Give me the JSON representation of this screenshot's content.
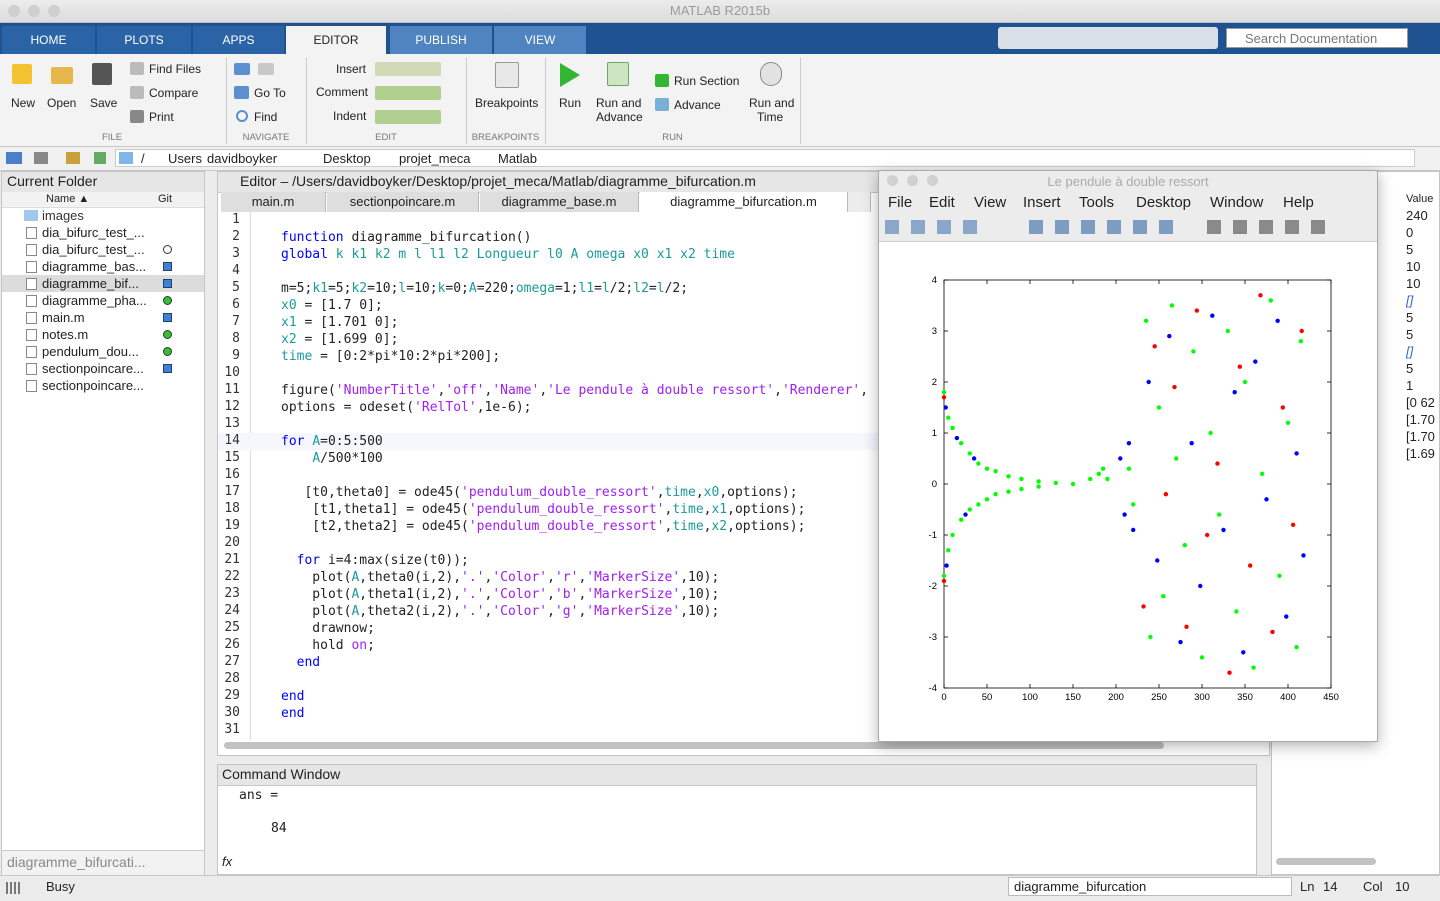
{
  "window_title": "MATLAB R2015b",
  "tabs": [
    "HOME",
    "PLOTS",
    "APPS",
    "EDITOR",
    "PUBLISH",
    "VIEW"
  ],
  "search": "Search Documentation",
  "ribbon": {
    "new": "New",
    "open": "Open",
    "save": "Save",
    "find_files": "Find Files",
    "compare": "Compare",
    "print": "Print",
    "go_to": "Go To",
    "find": "Find",
    "insert": "Insert",
    "comment": "Comment",
    "indent": "Indent",
    "breakpoints": "Breakpoints",
    "run": "Run",
    "run_advance": [
      "Run and",
      "Advance"
    ],
    "run_section": "Run Section",
    "advance": "Advance",
    "run_time": [
      "Run and",
      "Time"
    ],
    "groups": [
      "FILE",
      "NAVIGATE",
      "EDIT",
      "BREAKPOINTS",
      "RUN"
    ]
  },
  "address": [
    "/",
    "Users",
    "davidboyker",
    "Desktop",
    "projet_meca",
    "Matlab"
  ],
  "current_folder": {
    "title": "Current Folder",
    "col_name": "Name ▲",
    "col_git": "Git",
    "folder": "images",
    "files": [
      "dia_bifurc_test_...",
      "dia_bifurc_test_...",
      "diagramme_bas...",
      "diagramme_bif...",
      "diagramme_pha...",
      "main.m",
      "notes.m",
      "pendulum_dou...",
      "sectionpoincare...",
      "sectionpoincare..."
    ],
    "footer": "diagramme_bifurcati..."
  },
  "editor": {
    "title": "Editor – /Users/davidboyker/Desktop/projet_meca/Matlab/diagramme_bifurcation.m",
    "tabs": [
      "main.m",
      "sectionpoincare.m",
      "diagramme_base.m",
      "diagramme_bifurcation.m"
    ],
    "lines": [
      {
        "n": 1,
        "text": []
      },
      {
        "n": 2,
        "text": [
          [
            "function",
            "#0000ff"
          ],
          " diagramme_bifurcation()"
        ]
      },
      {
        "n": 3,
        "text": [
          [
            "global",
            "#0000ff"
          ],
          " ",
          [
            "k k1 k2 m l l1 l2 Longueur l0 A omega x0 x1 x2 time",
            "#1c9a9a"
          ]
        ]
      },
      {
        "n": 4,
        "text": []
      },
      {
        "n": 5,
        "text": [
          "m=5;",
          [
            "k1",
            "#1c9a9a"
          ],
          "=5;",
          [
            "k2",
            "#1c9a9a"
          ],
          "=10;",
          [
            "l",
            "#1c9a9a"
          ],
          "=10;",
          [
            "k",
            "#1c9a9a"
          ],
          "=0;",
          [
            "A",
            "#1c9a9a"
          ],
          "=220;",
          [
            "omega",
            "#1c9a9a"
          ],
          "=1;",
          [
            "l1",
            "#1c9a9a"
          ],
          "=",
          [
            "l",
            "#1c9a9a"
          ],
          "/2;",
          [
            "l2",
            "#1c9a9a"
          ],
          "=",
          [
            "l",
            "#1c9a9a"
          ],
          "/2;"
        ]
      },
      {
        "n": 6,
        "text": [
          [
            "x0",
            "#1c9a9a"
          ],
          " = [1.7 0];"
        ]
      },
      {
        "n": 7,
        "text": [
          [
            "x1",
            "#1c9a9a"
          ],
          " = [1.701 0];"
        ]
      },
      {
        "n": 8,
        "text": [
          [
            "x2",
            "#1c9a9a"
          ],
          " = [1.699 0];"
        ]
      },
      {
        "n": 9,
        "text": [
          [
            "time",
            "#1c9a9a"
          ],
          " = [0:2*pi*10:2*pi*200];"
        ]
      },
      {
        "n": 10,
        "text": []
      },
      {
        "n": 11,
        "text": [
          "figure(",
          [
            "'NumberTitle'",
            "#a020f0"
          ],
          ",",
          [
            "'off'",
            "#a020f0"
          ],
          ",",
          [
            "'Name'",
            "#a020f0"
          ],
          ",",
          [
            "'Le pendule à double ressort'",
            "#a020f0"
          ],
          ",",
          [
            "'Renderer'",
            "#a020f0"
          ],
          ","
        ]
      },
      {
        "n": 12,
        "text": [
          "options = odeset(",
          [
            "'RelTol'",
            "#a020f0"
          ],
          ",1e-6);"
        ]
      },
      {
        "n": 13,
        "text": []
      },
      {
        "n": 14,
        "text": [
          [
            "for",
            "#0000ff"
          ],
          " ",
          [
            "A",
            "#1c9a9a"
          ],
          "=0:5:500"
        ]
      },
      {
        "n": 15,
        "text": [
          "    ",
          [
            "A",
            "#1c9a9a"
          ],
          "/500*100"
        ]
      },
      {
        "n": 16,
        "text": []
      },
      {
        "n": 17,
        "text": [
          "   [t0,theta0] = ode45(",
          [
            "'pendulum_double_ressort'",
            "#a020f0"
          ],
          ",",
          [
            "time",
            "#1c9a9a"
          ],
          ",",
          [
            "x0",
            "#1c9a9a"
          ],
          ",options);"
        ]
      },
      {
        "n": 18,
        "text": [
          "    [t1,theta1] = ode45(",
          [
            "'pendulum_double_ressort'",
            "#a020f0"
          ],
          ",",
          [
            "time",
            "#1c9a9a"
          ],
          ",",
          [
            "x1",
            "#1c9a9a"
          ],
          ",options);"
        ]
      },
      {
        "n": 19,
        "text": [
          "    [t2,theta2] = ode45(",
          [
            "'pendulum_double_ressort'",
            "#a020f0"
          ],
          ",",
          [
            "time",
            "#1c9a9a"
          ],
          ",",
          [
            "x2",
            "#1c9a9a"
          ],
          ",options);"
        ]
      },
      {
        "n": 20,
        "text": []
      },
      {
        "n": 21,
        "text": [
          "  ",
          [
            "for",
            "#0000ff"
          ],
          " i=4:max(size(t0));"
        ]
      },
      {
        "n": 22,
        "text": [
          "    plot(",
          [
            "A",
            "#1c9a9a"
          ],
          ",theta0(i,2),",
          [
            "'.'",
            "#a020f0"
          ],
          ",",
          [
            "'Color'",
            "#a020f0"
          ],
          ",",
          [
            "'r'",
            "#a020f0"
          ],
          ",",
          [
            "'MarkerSize'",
            "#a020f0"
          ],
          ",10);"
        ]
      },
      {
        "n": 23,
        "text": [
          "    plot(",
          [
            "A",
            "#1c9a9a"
          ],
          ",theta1(i,2),",
          [
            "'.'",
            "#a020f0"
          ],
          ",",
          [
            "'Color'",
            "#a020f0"
          ],
          ",",
          [
            "'b'",
            "#a020f0"
          ],
          ",",
          [
            "'MarkerSize'",
            "#a020f0"
          ],
          ",10);"
        ]
      },
      {
        "n": 24,
        "text": [
          "    plot(",
          [
            "A",
            "#1c9a9a"
          ],
          ",theta2(i,2),",
          [
            "'.'",
            "#a020f0"
          ],
          ",",
          [
            "'Color'",
            "#a020f0"
          ],
          ",",
          [
            "'g'",
            "#a020f0"
          ],
          ",",
          [
            "'MarkerSize'",
            "#a020f0"
          ],
          ",10);"
        ]
      },
      {
        "n": 25,
        "text": [
          "    drawnow;"
        ]
      },
      {
        "n": 26,
        "text": [
          "    hold ",
          [
            "on",
            "#a020f0"
          ],
          ";"
        ]
      },
      {
        "n": 27,
        "text": [
          "  ",
          [
            "end",
            "#0000ff"
          ]
        ]
      },
      {
        "n": 28,
        "text": []
      },
      {
        "n": 29,
        "text": [
          [
            "end",
            "#0000ff"
          ]
        ]
      },
      {
        "n": 30,
        "text": [
          [
            "end",
            "#0000ff"
          ]
        ]
      },
      {
        "n": 31,
        "text": []
      }
    ]
  },
  "command_window": {
    "title": "Command Window",
    "lines": [
      "ans =",
      84
    ],
    "prompt": "fx"
  },
  "workspace": {
    "col_value": "Value",
    "values": [
      "240",
      "0",
      "5",
      "10",
      "10",
      "[]",
      "5",
      "5",
      "[]",
      "5",
      "1",
      "[0 62",
      "[1.70",
      "[1.70",
      "[1.69"
    ]
  },
  "figure": {
    "title": "Le pendule à double ressort",
    "menu": [
      "File",
      "Edit",
      "View",
      "Insert",
      "Tools",
      "Desktop",
      "Window",
      "Help"
    ]
  },
  "chart_data": {
    "type": "scatter",
    "xlim": [
      0,
      450
    ],
    "ylim": [
      -4,
      4
    ],
    "xticks": [
      0,
      50,
      100,
      150,
      200,
      250,
      300,
      350,
      400,
      450
    ],
    "yticks": [
      -4,
      -3,
      -2,
      -1,
      0,
      1,
      2,
      3,
      4
    ],
    "series": [
      {
        "color": "#00ff00",
        "x": [
          0,
          0,
          5,
          5,
          10,
          10,
          20,
          20,
          30,
          30,
          40,
          40,
          50,
          50,
          60,
          60,
          75,
          75,
          90,
          90,
          110,
          110,
          130,
          150,
          170,
          180,
          185,
          190,
          215,
          220,
          235,
          240,
          250,
          255,
          265,
          270,
          280,
          290,
          300,
          310,
          320,
          330,
          340,
          350,
          360,
          370,
          380,
          390,
          400,
          410,
          415
        ],
        "values": [
          1.8,
          -1.8,
          1.3,
          -1.3,
          1.1,
          -1.0,
          0.8,
          -0.7,
          0.6,
          -0.5,
          0.4,
          -0.4,
          0.3,
          -0.3,
          0.25,
          -0.2,
          0.15,
          -0.15,
          0.1,
          -0.1,
          0.05,
          -0.05,
          0.02,
          0,
          0.1,
          0.2,
          0.3,
          0.1,
          0.3,
          -0.4,
          3.2,
          -3.0,
          1.5,
          -2.2,
          3.5,
          0.5,
          -1.2,
          2.6,
          -3.4,
          1.0,
          -0.6,
          3.0,
          -2.5,
          2.0,
          -3.6,
          0.2,
          3.6,
          -1.8,
          1.2,
          -3.2,
          2.8
        ]
      },
      {
        "color": "#0000ff",
        "x": [
          2,
          3,
          15,
          25,
          35,
          205,
          210,
          215,
          220,
          238,
          248,
          262,
          275,
          288,
          298,
          312,
          325,
          338,
          348,
          362,
          375,
          388,
          398,
          410,
          418
        ],
        "values": [
          1.5,
          -1.6,
          0.9,
          -0.6,
          0.5,
          0.5,
          -0.6,
          0.8,
          -0.9,
          2.0,
          -1.5,
          2.9,
          -3.1,
          0.8,
          -2.0,
          3.3,
          -0.9,
          1.8,
          -3.3,
          2.4,
          -0.3,
          3.2,
          -2.6,
          0.6,
          -1.4
        ]
      },
      {
        "color": "#ff0000",
        "x": [
          0,
          0,
          232,
          245,
          258,
          268,
          282,
          294,
          306,
          318,
          332,
          344,
          356,
          368,
          382,
          394,
          406,
          416
        ],
        "values": [
          1.7,
          -1.9,
          -2.4,
          2.7,
          -0.2,
          1.9,
          -2.8,
          3.4,
          -1.0,
          0.4,
          -3.7,
          2.3,
          -1.6,
          3.7,
          -2.9,
          1.5,
          -0.8,
          3.0
        ]
      }
    ]
  },
  "status": {
    "state": "Busy",
    "function": "diagramme_bifurcation",
    "ln_label": "Ln",
    "ln": 14,
    "col_label": "Col",
    "col": 10
  }
}
